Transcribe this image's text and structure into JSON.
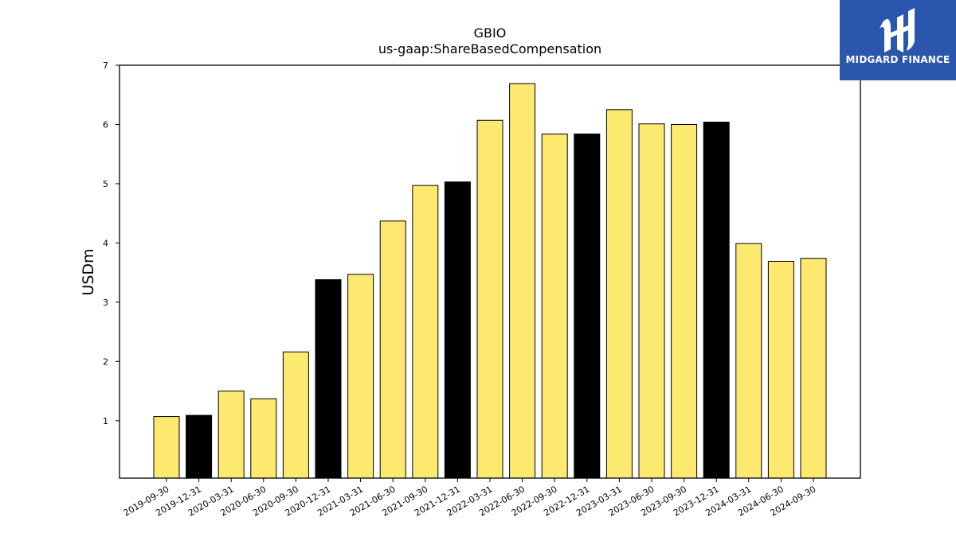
{
  "header": {
    "title": "GBIO",
    "subtitle": "us-gaap:ShareBasedCompensation"
  },
  "logo": {
    "text": "MIDGARD FINANCE",
    "background": "#2a57ad",
    "icon": "midgard-logo-icon"
  },
  "chart_data": {
    "type": "bar",
    "title": "GBIO",
    "subtitle": "us-gaap:ShareBasedCompensation",
    "xlabel": "",
    "ylabel": "USDm",
    "ylim": [
      0.03,
      7
    ],
    "yticks": [
      1,
      2,
      3,
      4,
      5,
      6,
      7
    ],
    "grid": false,
    "categories": [
      "2019-09-30",
      "2019-12-31",
      "2020-03-31",
      "2020-06-30",
      "2020-09-30",
      "2020-12-31",
      "2021-03-31",
      "2021-06-30",
      "2021-09-30",
      "2021-12-31",
      "2022-03-31",
      "2022-06-30",
      "2022-09-30",
      "2022-12-31",
      "2023-03-31",
      "2023-06-30",
      "2023-09-30",
      "2023-12-31",
      "2024-03-31",
      "2024-06-30",
      "2024-09-30"
    ],
    "values": [
      1.07,
      1.09,
      1.5,
      1.37,
      2.16,
      3.38,
      3.47,
      4.37,
      4.97,
      5.03,
      6.07,
      6.69,
      5.84,
      5.84,
      6.25,
      6.01,
      6.0,
      6.04,
      3.99,
      3.69,
      3.74
    ],
    "bar_colors": [
      "#fde970",
      "#000000",
      "#fde970",
      "#fde970",
      "#fde970",
      "#000000",
      "#fde970",
      "#fde970",
      "#fde970",
      "#000000",
      "#fde970",
      "#fde970",
      "#fde970",
      "#000000",
      "#fde970",
      "#fde970",
      "#fde970",
      "#000000",
      "#fde970",
      "#fde970",
      "#fde970"
    ],
    "colors": {
      "quarter": "#fde970",
      "year_end": "#000000",
      "edge": "#000000"
    }
  }
}
